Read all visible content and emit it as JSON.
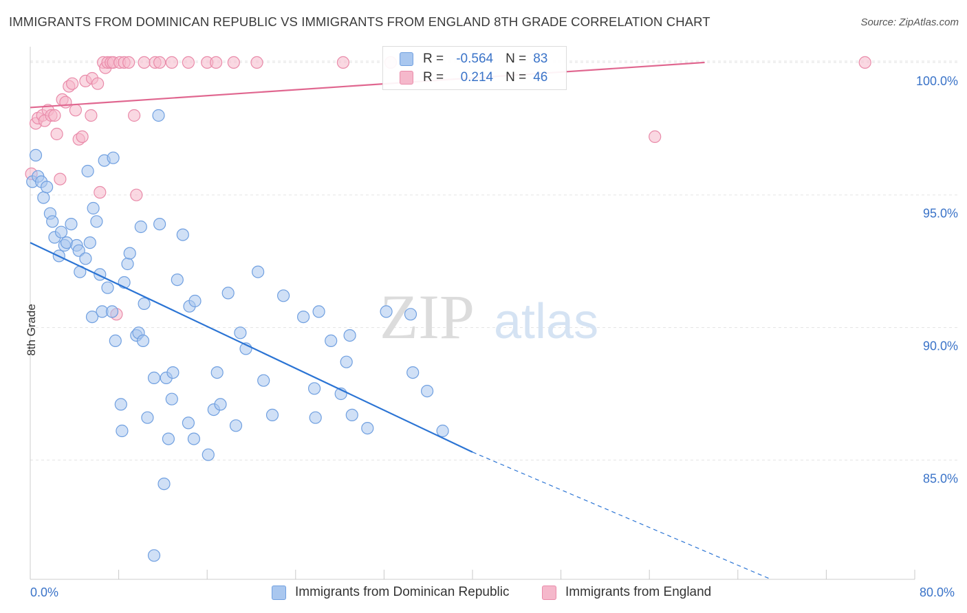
{
  "header": {
    "title": "IMMIGRANTS FROM DOMINICAN REPUBLIC VS IMMIGRANTS FROM ENGLAND 8TH GRADE CORRELATION CHART",
    "source": "Source: ZipAtlas.com"
  },
  "watermark": {
    "zip": "ZIP",
    "atlas": "atlas"
  },
  "legend": {
    "r_label": "R =",
    "n_label": "N =",
    "series1_r": "-0.564",
    "series1_n": "83",
    "series2_r": "0.214",
    "series2_n": "46"
  },
  "colors": {
    "blue_fill": "#a9c7ef",
    "blue_stroke": "#6f9fe0",
    "blue_line": "#2b74d4",
    "pink_fill": "#f5b8cb",
    "pink_stroke": "#e98aa9",
    "pink_line": "#e0668f",
    "axis_label": "#3a73c8",
    "grid": "#e3e3e3"
  },
  "chart_data": {
    "type": "scatter",
    "title": "IMMIGRANTS FROM DOMINICAN REPUBLIC VS IMMIGRANTS FROM ENGLAND 8TH GRADE CORRELATION CHART",
    "xlabel": "",
    "ylabel": "8th Grade",
    "xlim": [
      0,
      80
    ],
    "ylim": [
      80.5,
      100.8
    ],
    "x_tick_labels": [
      "0.0%",
      "80.0%"
    ],
    "y_ticks": [
      85,
      90,
      95,
      100
    ],
    "y_tick_labels": [
      "85.0%",
      "90.0%",
      "95.0%",
      "100.0%"
    ],
    "grid": true,
    "legend_position": "bottom",
    "series": [
      {
        "name": "Immigrants from Dominican Republic",
        "color": "blue",
        "r": -0.564,
        "n": 83,
        "trend": {
          "x0": 0,
          "y0": 93.2,
          "x1": 40,
          "y1": 85.3,
          "dashed_to_x": 67,
          "dashed_to_y": 80.5
        },
        "points": [
          [
            0.2,
            95.5
          ],
          [
            0.5,
            96.5
          ],
          [
            0.7,
            95.7
          ],
          [
            1.0,
            95.5
          ],
          [
            1.2,
            94.9
          ],
          [
            1.5,
            95.3
          ],
          [
            1.8,
            94.3
          ],
          [
            2.0,
            94.0
          ],
          [
            2.2,
            93.4
          ],
          [
            2.6,
            92.7
          ],
          [
            2.8,
            93.6
          ],
          [
            3.1,
            93.1
          ],
          [
            3.3,
            93.2
          ],
          [
            3.7,
            93.9
          ],
          [
            4.2,
            93.1
          ],
          [
            4.4,
            92.9
          ],
          [
            4.5,
            92.1
          ],
          [
            5.0,
            92.6
          ],
          [
            5.2,
            95.9
          ],
          [
            5.4,
            93.2
          ],
          [
            5.6,
            90.4
          ],
          [
            5.7,
            94.5
          ],
          [
            6.0,
            94.0
          ],
          [
            6.3,
            92.0
          ],
          [
            6.5,
            90.6
          ],
          [
            6.7,
            96.3
          ],
          [
            7.0,
            91.5
          ],
          [
            7.4,
            90.6
          ],
          [
            7.5,
            96.4
          ],
          [
            7.7,
            89.5
          ],
          [
            8.2,
            87.1
          ],
          [
            8.3,
            86.1
          ],
          [
            8.5,
            91.7
          ],
          [
            8.8,
            92.4
          ],
          [
            9.0,
            92.8
          ],
          [
            9.6,
            89.7
          ],
          [
            9.8,
            89.8
          ],
          [
            10.0,
            93.8
          ],
          [
            10.2,
            89.5
          ],
          [
            10.3,
            90.9
          ],
          [
            10.6,
            86.6
          ],
          [
            11.2,
            88.1
          ],
          [
            11.2,
            81.4
          ],
          [
            11.7,
            93.9
          ],
          [
            11.6,
            98.0
          ],
          [
            12.1,
            84.1
          ],
          [
            12.3,
            88.1
          ],
          [
            12.5,
            85.8
          ],
          [
            12.8,
            87.3
          ],
          [
            12.9,
            88.3
          ],
          [
            13.3,
            91.8
          ],
          [
            13.8,
            93.5
          ],
          [
            14.3,
            86.4
          ],
          [
            14.4,
            90.8
          ],
          [
            14.8,
            85.8
          ],
          [
            14.9,
            91.0
          ],
          [
            16.1,
            85.2
          ],
          [
            16.6,
            86.9
          ],
          [
            16.9,
            88.3
          ],
          [
            17.2,
            87.1
          ],
          [
            17.9,
            91.3
          ],
          [
            18.6,
            86.3
          ],
          [
            19.0,
            89.8
          ],
          [
            19.5,
            89.2
          ],
          [
            20.6,
            92.1
          ],
          [
            21.1,
            88.0
          ],
          [
            21.9,
            86.7
          ],
          [
            22.9,
            91.2
          ],
          [
            24.7,
            90.4
          ],
          [
            25.7,
            87.7
          ],
          [
            25.8,
            86.6
          ],
          [
            26.1,
            90.6
          ],
          [
            27.2,
            89.5
          ],
          [
            28.1,
            87.5
          ],
          [
            28.6,
            88.7
          ],
          [
            28.9,
            89.7
          ],
          [
            29.1,
            86.7
          ],
          [
            30.5,
            86.2
          ],
          [
            32.2,
            90.6
          ],
          [
            34.4,
            90.5
          ],
          [
            34.6,
            88.3
          ],
          [
            35.9,
            87.6
          ],
          [
            37.3,
            86.1
          ]
        ]
      },
      {
        "name": "Immigrants from England",
        "color": "pink",
        "r": 0.214,
        "n": 46,
        "trend": {
          "x0": 0,
          "y0": 98.3,
          "x1": 61,
          "y1": 100.0
        },
        "points": [
          [
            0.1,
            95.8
          ],
          [
            0.5,
            97.7
          ],
          [
            0.7,
            97.9
          ],
          [
            1.1,
            98.0
          ],
          [
            1.3,
            97.8
          ],
          [
            1.6,
            98.2
          ],
          [
            1.9,
            98.0
          ],
          [
            2.2,
            98.0
          ],
          [
            2.4,
            97.3
          ],
          [
            2.7,
            95.6
          ],
          [
            2.9,
            98.6
          ],
          [
            3.2,
            98.5
          ],
          [
            3.5,
            99.1
          ],
          [
            3.8,
            99.2
          ],
          [
            4.1,
            98.2
          ],
          [
            4.4,
            97.1
          ],
          [
            4.7,
            97.2
          ],
          [
            5.0,
            99.3
          ],
          [
            5.5,
            98.0
          ],
          [
            5.6,
            99.4
          ],
          [
            6.1,
            99.2
          ],
          [
            6.3,
            95.1
          ],
          [
            6.6,
            100.0
          ],
          [
            6.8,
            99.8
          ],
          [
            7.0,
            100.0
          ],
          [
            7.3,
            100.0
          ],
          [
            7.5,
            100.0
          ],
          [
            7.8,
            90.5
          ],
          [
            8.1,
            100.0
          ],
          [
            8.5,
            100.0
          ],
          [
            8.9,
            100.0
          ],
          [
            9.4,
            98.0
          ],
          [
            9.6,
            95.0
          ],
          [
            10.3,
            100.0
          ],
          [
            11.3,
            100.0
          ],
          [
            11.7,
            100.0
          ],
          [
            12.8,
            100.0
          ],
          [
            14.3,
            100.0
          ],
          [
            16.0,
            100.0
          ],
          [
            16.8,
            100.0
          ],
          [
            18.4,
            100.0
          ],
          [
            20.5,
            100.0
          ],
          [
            28.3,
            100.0
          ],
          [
            32.6,
            100.0
          ],
          [
            56.5,
            97.2
          ],
          [
            75.5,
            100.0
          ]
        ]
      }
    ]
  },
  "bottom_legend": {
    "item1": "Immigrants from Dominican Republic",
    "item2": "Immigrants from England"
  }
}
